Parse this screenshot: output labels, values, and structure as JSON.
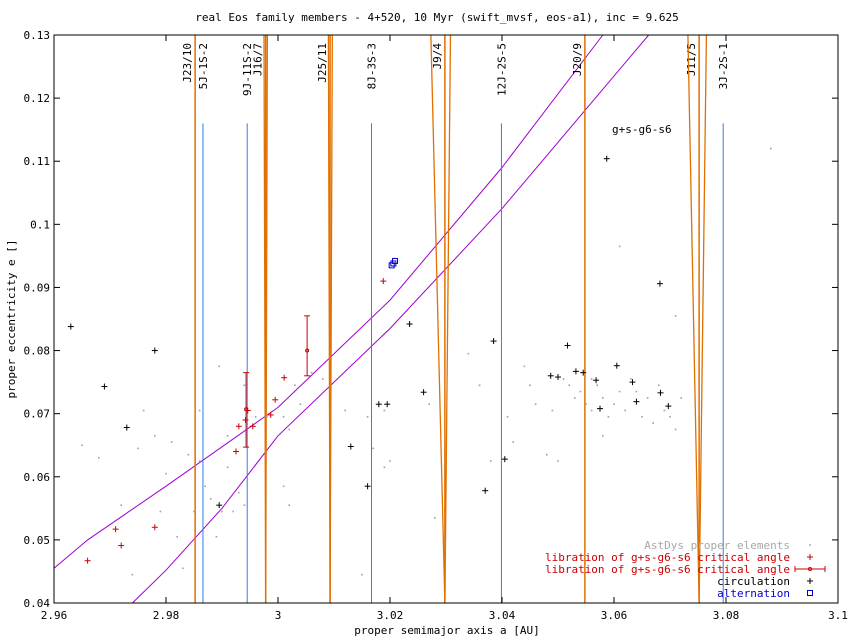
{
  "chart_data": {
    "type": "scatter",
    "title": "real Eos family members - 4+520, 10 Myr (swift_mvsf, eos-a1), inc = 9.625",
    "xlabel": "proper semimajor axis a [AU]",
    "ylabel": "proper eccentricity e []",
    "xlim": [
      2.96,
      3.1
    ],
    "ylim": [
      0.04,
      0.13
    ],
    "xticks": [
      "2.96",
      "2.98",
      "3",
      "3.02",
      "3.04",
      "3.06",
      "3.08",
      "3.1"
    ],
    "yticks": [
      "0.04",
      "0.05",
      "0.06",
      "0.07",
      "0.08",
      "0.09",
      "0.1",
      "0.11",
      "0.12",
      "0.13"
    ],
    "xtick_values": [
      2.96,
      2.98,
      3.0,
      3.02,
      3.04,
      3.06,
      3.08,
      3.1
    ],
    "ytick_values": [
      0.04,
      0.05,
      0.06,
      0.07,
      0.08,
      0.09,
      0.1,
      0.11,
      0.12,
      0.13
    ],
    "legend_position": "bottom-right",
    "colors": {
      "gray": "#a0a0a0",
      "red": "#cc0000",
      "black": "#000000",
      "blue": "#0000cc",
      "mmr_orange": "#e07000",
      "mmr_blue": "#3080e0",
      "secular_magenta": "#a000d0"
    },
    "resonances": {
      "orange": [
        {
          "label": "J23/10",
          "x": 2.9852
        },
        {
          "label": "J16/7",
          "x": 2.9978
        },
        {
          "label": "J25/11",
          "x": 3.0093
        },
        {
          "label": "J9/4",
          "x": 3.0298
        },
        {
          "label": "J20/9",
          "x": 3.0548
        },
        {
          "label": "J11/5",
          "x": 3.0752
        }
      ],
      "blue": [
        {
          "label": "5J-1S-2",
          "x": 2.9866
        },
        {
          "label": "9J-11S-2",
          "x": 2.9945
        },
        {
          "label": "8J-3S-3",
          "x": 3.0167
        },
        {
          "label": "12J-2S-5",
          "x": 3.0399
        },
        {
          "label": "3J-2S-1",
          "x": 3.0795
        }
      ],
      "blue_top": 0.116,
      "wedges": [
        {
          "x": 3.0298,
          "x_top_left": 3.0273,
          "x_top_right": 3.0308
        },
        {
          "x": 3.0752,
          "x_top_left": 3.0732,
          "x_top_right": 3.0765
        },
        {
          "x": 2.9978,
          "x_top_left": 2.9975,
          "x_top_right": 2.9981
        },
        {
          "x": 3.0093,
          "x_top_left": 3.009,
          "x_top_right": 3.0097
        }
      ]
    },
    "secular_label": "g+s-g6-s6",
    "secular_lines": [
      {
        "x": [
          2.96,
          2.966,
          2.98,
          3.0,
          3.02,
          3.04,
          3.058
        ],
        "y": [
          0.0455,
          0.05,
          0.0585,
          0.071,
          0.088,
          0.109,
          0.13
        ]
      },
      {
        "x": [
          2.974,
          2.98,
          2.99,
          3.0,
          3.02,
          3.04,
          3.0662
        ],
        "y": [
          0.04,
          0.0452,
          0.055,
          0.0665,
          0.0835,
          0.1025,
          0.13
        ]
      }
    ],
    "series": [
      {
        "name": "AstDys proper elements",
        "marker": "dot",
        "points": [
          [
            2.965,
            0.065
          ],
          [
            2.968,
            0.063
          ],
          [
            2.972,
            0.0555
          ],
          [
            2.974,
            0.0445
          ],
          [
            2.975,
            0.0645
          ],
          [
            2.976,
            0.0705
          ],
          [
            2.978,
            0.0665
          ],
          [
            2.979,
            0.0545
          ],
          [
            2.98,
            0.0605
          ],
          [
            2.981,
            0.0655
          ],
          [
            2.982,
            0.0505
          ],
          [
            2.983,
            0.0455
          ],
          [
            2.984,
            0.0635
          ],
          [
            2.985,
            0.0545
          ],
          [
            2.986,
            0.0625
          ],
          [
            2.986,
            0.0705
          ],
          [
            2.987,
            0.0585
          ],
          [
            2.988,
            0.0565
          ],
          [
            2.989,
            0.0505
          ],
          [
            2.9895,
            0.0775
          ],
          [
            2.99,
            0.0545
          ],
          [
            2.991,
            0.0615
          ],
          [
            2.991,
            0.0665
          ],
          [
            2.992,
            0.0545
          ],
          [
            2.993,
            0.0575
          ],
          [
            2.994,
            0.0555
          ],
          [
            2.994,
            0.0745
          ],
          [
            2.996,
            0.0695
          ],
          [
            2.998,
            0.0695
          ],
          [
            3.001,
            0.0585
          ],
          [
            3.001,
            0.0695
          ],
          [
            3.002,
            0.0555
          ],
          [
            3.002,
            0.0675
          ],
          [
            3.003,
            0.0745
          ],
          [
            3.004,
            0.0715
          ],
          [
            3.006,
            0.0765
          ],
          [
            3.008,
            0.0755
          ],
          [
            3.012,
            0.0705
          ],
          [
            3.015,
            0.0445
          ],
          [
            3.016,
            0.0695
          ],
          [
            3.017,
            0.0645
          ],
          [
            3.019,
            0.0615
          ],
          [
            3.019,
            0.0705
          ],
          [
            3.02,
            0.0625
          ],
          [
            3.027,
            0.0715
          ],
          [
            3.028,
            0.0535
          ],
          [
            3.034,
            0.0795
          ],
          [
            3.036,
            0.0745
          ],
          [
            3.038,
            0.0625
          ],
          [
            3.041,
            0.0695
          ],
          [
            3.042,
            0.0655
          ],
          [
            3.044,
            0.0775
          ],
          [
            3.045,
            0.0745
          ],
          [
            3.046,
            0.0715
          ],
          [
            3.048,
            0.0635
          ],
          [
            3.049,
            0.0705
          ],
          [
            3.05,
            0.0625
          ],
          [
            3.051,
            0.0755
          ],
          [
            3.052,
            0.0745
          ],
          [
            3.053,
            0.0725
          ],
          [
            3.054,
            0.0735
          ],
          [
            3.055,
            0.0715
          ],
          [
            3.056,
            0.0755
          ],
          [
            3.056,
            0.0705
          ],
          [
            3.057,
            0.0745
          ],
          [
            3.058,
            0.0725
          ],
          [
            3.058,
            0.0665
          ],
          [
            3.059,
            0.0695
          ],
          [
            3.06,
            0.0715
          ],
          [
            3.061,
            0.0735
          ],
          [
            3.061,
            0.0965
          ],
          [
            3.062,
            0.0705
          ],
          [
            3.063,
            0.0755
          ],
          [
            3.064,
            0.0735
          ],
          [
            3.065,
            0.0695
          ],
          [
            3.066,
            0.0725
          ],
          [
            3.067,
            0.0685
          ],
          [
            3.068,
            0.0745
          ],
          [
            3.069,
            0.0705
          ],
          [
            3.07,
            0.0695
          ],
          [
            3.071,
            0.0675
          ],
          [
            3.072,
            0.0725
          ],
          [
            3.071,
            0.0855
          ],
          [
            3.088,
            0.112
          ]
        ]
      },
      {
        "name": "libration of g+s-g6-s6 critical angle",
        "marker": "plus",
        "points": [
          [
            2.966,
            0.0467
          ],
          [
            2.971,
            0.0517
          ],
          [
            2.972,
            0.0491
          ],
          [
            2.978,
            0.052
          ],
          [
            2.9925,
            0.064
          ],
          [
            2.993,
            0.068
          ],
          [
            2.9942,
            0.069
          ],
          [
            2.9946,
            0.0705
          ],
          [
            2.9955,
            0.068
          ],
          [
            2.9987,
            0.0698
          ],
          [
            2.9995,
            0.0722
          ],
          [
            3.0011,
            0.0757
          ],
          [
            3.0188,
            0.091
          ]
        ]
      },
      {
        "name": "libration of g+s-g6-s6 critical angle",
        "marker": "errorbar",
        "points": [
          [
            2.9943,
            0.0707,
            0.0647,
            0.0765
          ],
          [
            3.0052,
            0.08,
            0.076,
            0.0855
          ]
        ]
      },
      {
        "name": "circulation",
        "marker": "plus",
        "points": [
          [
            2.963,
            0.0838
          ],
          [
            2.969,
            0.0743
          ],
          [
            2.973,
            0.0678
          ],
          [
            2.978,
            0.08
          ],
          [
            2.9895,
            0.0555
          ],
          [
            3.013,
            0.0648
          ],
          [
            3.016,
            0.0585
          ],
          [
            3.018,
            0.0715
          ],
          [
            3.0195,
            0.0715
          ],
          [
            3.0235,
            0.0842
          ],
          [
            3.026,
            0.0734
          ],
          [
            3.037,
            0.0578
          ],
          [
            3.0385,
            0.0815
          ],
          [
            3.0405,
            0.0628
          ],
          [
            3.0487,
            0.076
          ],
          [
            3.05,
            0.0758
          ],
          [
            3.0517,
            0.0808
          ],
          [
            3.0532,
            0.0767
          ],
          [
            3.0545,
            0.0765
          ],
          [
            3.0568,
            0.0753
          ],
          [
            3.0575,
            0.0708
          ],
          [
            3.0587,
            0.1104
          ],
          [
            3.0605,
            0.0776
          ],
          [
            3.0633,
            0.075
          ],
          [
            3.064,
            0.0719
          ],
          [
            3.0682,
            0.0906
          ],
          [
            3.0683,
            0.0733
          ],
          [
            3.0697,
            0.0712
          ]
        ]
      },
      {
        "name": "alternation",
        "marker": "square",
        "points": [
          [
            3.0203,
            0.0935
          ],
          [
            3.0206,
            0.0938
          ],
          [
            3.0209,
            0.0942
          ]
        ]
      }
    ],
    "legend": [
      {
        "label": "AstDys proper elements",
        "color": "gray",
        "marker": "dot"
      },
      {
        "label": "libration of g+s-g6-s6 critical angle",
        "color": "red",
        "marker": "plus"
      },
      {
        "label": "libration of g+s-g6-s6 critical angle",
        "color": "red",
        "marker": "errorbar"
      },
      {
        "label": "circulation",
        "color": "black",
        "marker": "plus"
      },
      {
        "label": "alternation",
        "color": "blue",
        "marker": "square"
      }
    ]
  }
}
